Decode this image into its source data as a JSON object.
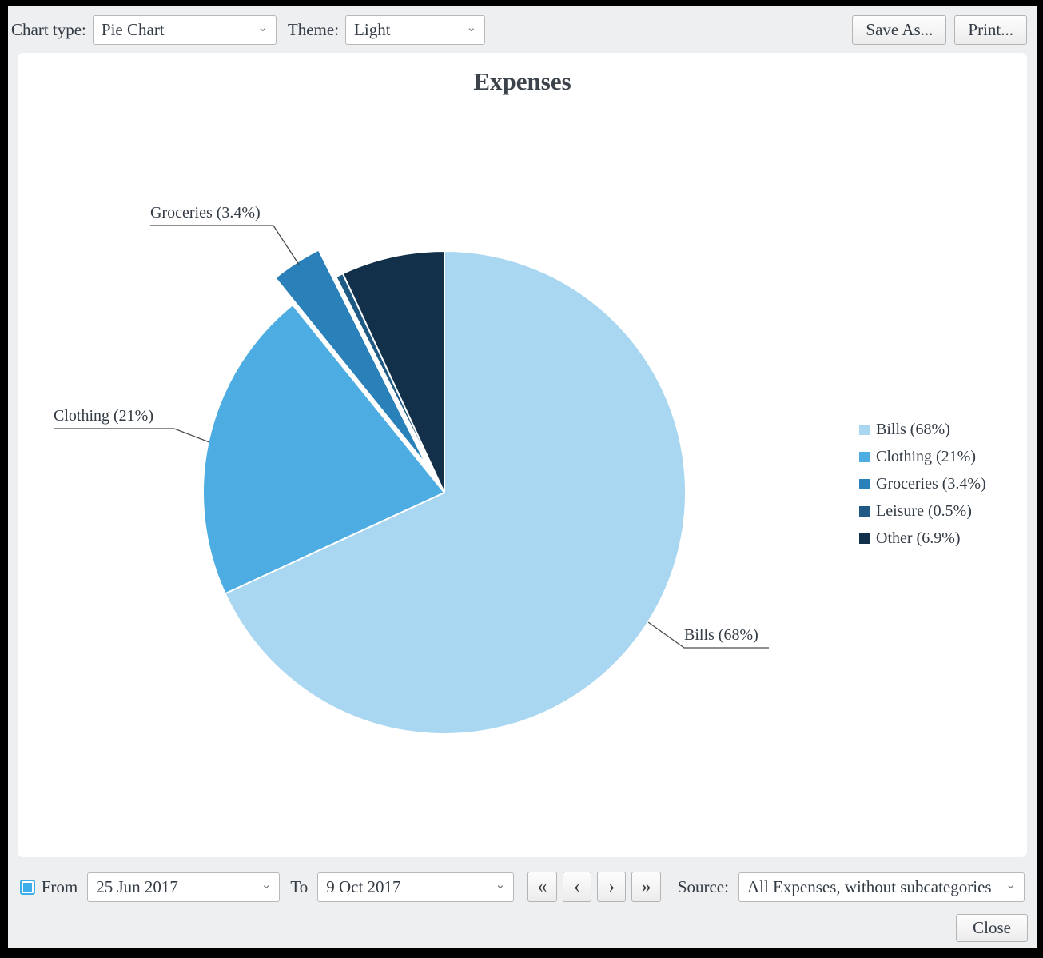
{
  "toolbar": {
    "chart_type_label": "Chart type:",
    "chart_type_value": "Pie Chart",
    "theme_label": "Theme:",
    "theme_value": "Light",
    "save_as_label": "Save As...",
    "print_label": "Print..."
  },
  "chart_data": {
    "type": "pie",
    "title": "Expenses",
    "categories": [
      "Bills",
      "Clothing",
      "Groceries",
      "Leisure",
      "Other"
    ],
    "values": [
      68,
      21,
      3.4,
      0.5,
      6.9
    ],
    "unit": "%",
    "colors": [
      "#a9d6f0",
      "#4dade2",
      "#2a80b8",
      "#1e5a84",
      "#12304a"
    ],
    "exploded_slice": "Groceries",
    "start_angle_deg_from_top_clockwise": 0,
    "legend_position": "right",
    "legend": [
      {
        "label": "Bills (68%)",
        "color": "#a9d6f0"
      },
      {
        "label": "Clothing (21%)",
        "color": "#4dade2"
      },
      {
        "label": "Groceries (3.4%)",
        "color": "#2a80b8"
      },
      {
        "label": "Leisure (0.5%)",
        "color": "#1e5a84"
      },
      {
        "label": "Other (6.9%)",
        "color": "#12304a"
      }
    ],
    "callouts": {
      "groceries": "Groceries (3.4%)",
      "clothing": "Clothing (21%)",
      "bills": "Bills (68%)"
    }
  },
  "footer": {
    "from_checkbox_checked": true,
    "from_label": "From",
    "from_value": "25 Jun 2017",
    "to_label": "To",
    "to_value": "9 Oct 2017",
    "nav_first": "«",
    "nav_prev": "‹",
    "nav_next": "›",
    "nav_last": "»",
    "source_label": "Source:",
    "source_value": "All Expenses, without subcategories",
    "close_label": "Close"
  }
}
